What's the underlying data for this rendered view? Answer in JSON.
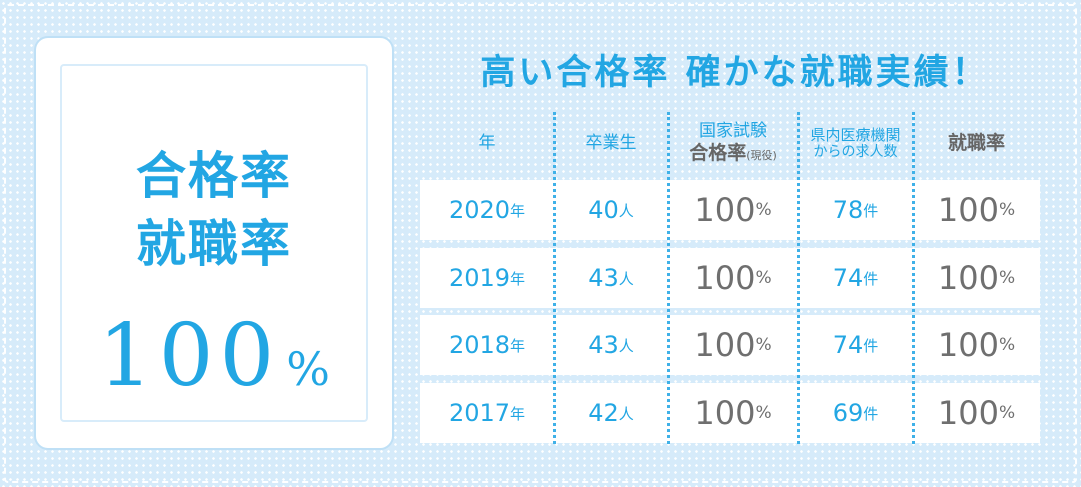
{
  "card": {
    "headline": [
      "合格率",
      "就職率"
    ],
    "value": 100,
    "unit": "%"
  },
  "title": "高い合格率 確かな就職実績！",
  "table": {
    "header": [
      [
        "年"
      ],
      [
        "卒業生"
      ],
      [
        "国家試験",
        "合格率",
        "(現役)"
      ],
      [
        "県内医療機関",
        "からの求人数"
      ],
      [
        "就職率"
      ]
    ],
    "rows": [
      [
        [
          2020,
          "年"
        ],
        [
          40,
          "人"
        ],
        [
          100,
          "%"
        ],
        [
          78,
          "件"
        ],
        [
          100,
          "%"
        ]
      ],
      [
        [
          2019,
          "年"
        ],
        [
          43,
          "人"
        ],
        [
          100,
          "%"
        ],
        [
          74,
          "件"
        ],
        [
          100,
          "%"
        ]
      ],
      [
        [
          2018,
          "年"
        ],
        [
          43,
          "人"
        ],
        [
          100,
          "%"
        ],
        [
          74,
          "件"
        ],
        [
          100,
          "%"
        ]
      ],
      [
        [
          2017,
          "年"
        ],
        [
          42,
          "人"
        ],
        [
          100,
          "%"
        ],
        [
          69,
          "件"
        ],
        [
          100,
          "%"
        ]
      ]
    ]
  }
}
